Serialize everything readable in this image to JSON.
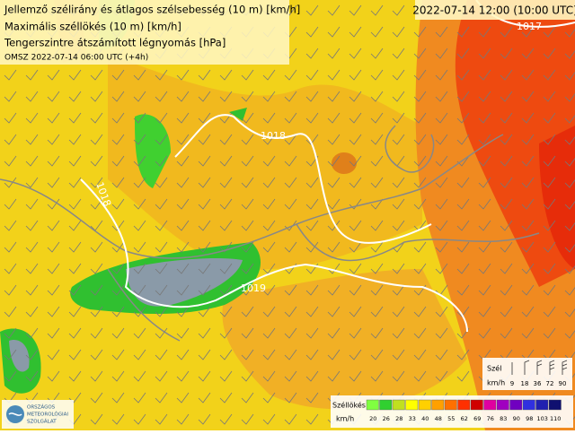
{
  "header": {
    "lines": [
      "Jellemző szélirány és átlagos szélsebesség (10 m) [km/h]",
      "Maximális széllökés (10 m) [km/h]",
      "Tengerszintre átszámított légnyomás [hPa]"
    ],
    "run": "OMSZ 2022-07-14 06:00 UTC (+4h)"
  },
  "valid_time": "2022-07-14 12:00 (10:00 UTC)",
  "isobars": [
    "1017",
    "1018",
    "1018",
    "1019"
  ],
  "wind_legend": {
    "title": "Szél",
    "unit": "km/h",
    "labels": [
      "9",
      "18",
      "36",
      "72",
      "90"
    ]
  },
  "gust_legend": {
    "title": "Széllökés",
    "unit": "km/h",
    "labels": [
      "20",
      "26",
      "28",
      "33",
      "40",
      "48",
      "55",
      "62",
      "69",
      "76",
      "83",
      "90",
      "98",
      "103",
      "110"
    ],
    "colors": [
      "#80ff40",
      "#30d030",
      "#c0e020",
      "#ffff00",
      "#ffd000",
      "#ffa000",
      "#ff7000",
      "#ff3000",
      "#d00000",
      "#e000a0",
      "#a000c0",
      "#7000c0",
      "#3030e0",
      "#2020b0",
      "#101070"
    ]
  },
  "logo": [
    "ORSZÁGOS",
    "METEOROLÓGIAI",
    "SZOLGÁLAT"
  ]
}
